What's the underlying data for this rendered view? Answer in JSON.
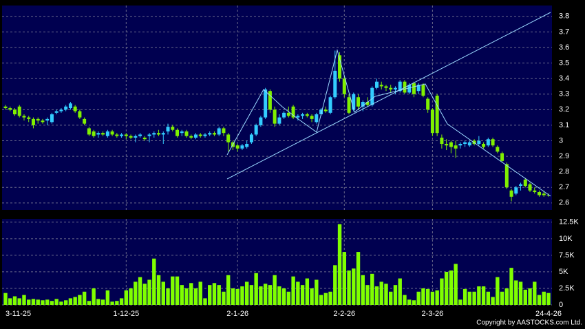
{
  "chart_data": [
    {
      "type": "candlestick",
      "categories": [
        "3-11-25",
        null,
        null,
        null,
        null,
        null,
        null,
        null,
        null,
        null,
        null,
        null,
        null,
        null,
        null,
        null,
        null,
        null,
        null,
        null,
        null,
        null,
        null,
        null,
        null,
        null,
        "1-12-25",
        null,
        null,
        null,
        null,
        null,
        null,
        null,
        null,
        null,
        null,
        null,
        null,
        null,
        null,
        null,
        null,
        null,
        null,
        null,
        null,
        null,
        null,
        null,
        "2-1-26",
        null,
        null,
        null,
        null,
        null,
        null,
        null,
        null,
        null,
        null,
        null,
        null,
        null,
        null,
        null,
        null,
        null,
        null,
        null,
        null,
        null,
        null,
        "2-2-26",
        null,
        null,
        null,
        null,
        null,
        null,
        null,
        null,
        null,
        null,
        null,
        null,
        null,
        null,
        null,
        null,
        null,
        null,
        "2-3-26",
        null,
        null,
        null,
        null,
        null,
        null,
        null,
        null,
        null,
        null,
        null,
        null,
        null,
        null,
        null,
        null,
        null,
        null,
        null,
        null,
        null,
        null,
        null,
        null,
        "24-4-26"
      ],
      "open": [
        3.22,
        3.21,
        3.2,
        3.22,
        3.16,
        3.15,
        3.14,
        3.14,
        3.13,
        3.13,
        3.12,
        3.18,
        3.19,
        3.2,
        3.21,
        3.22,
        3.19,
        3.14,
        3.08,
        3.06,
        3.04,
        3.05,
        3.03,
        3.06,
        3.04,
        3.03,
        3.04,
        3.03,
        3.02,
        3.03,
        3.02,
        3.03,
        3.04,
        3.05,
        3.04,
        3.06,
        3.09,
        3.07,
        3.05,
        3.06,
        3.03,
        3.02,
        3.04,
        3.03,
        3.04,
        3.05,
        3.04,
        3.08,
        3.04,
        2.99,
        2.97,
        2.95,
        2.96,
        2.99,
        3.04,
        3.1,
        3.15,
        3.32,
        3.2,
        3.11,
        3.15,
        3.18,
        3.22,
        3.15,
        3.16,
        3.17,
        3.16,
        3.12,
        3.17,
        3.2,
        3.18,
        3.28,
        3.55,
        3.4,
        3.28,
        3.2,
        3.28,
        3.22,
        3.25,
        3.23,
        3.34,
        3.36,
        3.35,
        3.34,
        3.33,
        3.32,
        3.38,
        3.31,
        3.37,
        3.32,
        3.36,
        3.27,
        3.2,
        3.29,
        3.02,
        2.98,
        2.99,
        2.97,
        2.97,
        2.98,
        2.97,
        3.0,
        2.98,
        2.98,
        2.97,
        3.01,
        2.96,
        2.92,
        2.85,
        2.68,
        2.66,
        2.71,
        2.75,
        2.72,
        2.68,
        2.67,
        2.66,
        2.65
      ],
      "high": [
        3.23,
        3.22,
        3.21,
        3.23,
        3.17,
        3.16,
        3.15,
        3.15,
        3.14,
        3.15,
        3.18,
        3.2,
        3.21,
        3.23,
        3.25,
        3.23,
        3.2,
        3.15,
        3.09,
        3.07,
        3.06,
        3.06,
        3.07,
        3.07,
        3.05,
        3.05,
        3.05,
        3.04,
        3.04,
        3.05,
        3.03,
        3.05,
        3.06,
        3.07,
        3.06,
        3.11,
        3.1,
        3.08,
        3.07,
        3.07,
        3.04,
        3.05,
        3.05,
        3.05,
        3.06,
        3.06,
        3.09,
        3.09,
        3.05,
        3.0,
        2.98,
        2.98,
        3.0,
        3.05,
        3.11,
        3.16,
        3.34,
        3.33,
        3.22,
        3.17,
        3.19,
        3.22,
        3.23,
        3.17,
        3.18,
        3.18,
        3.17,
        3.18,
        3.21,
        3.22,
        3.29,
        3.58,
        3.57,
        3.42,
        3.3,
        3.31,
        3.3,
        3.26,
        3.28,
        3.35,
        3.4,
        3.38,
        3.36,
        3.36,
        3.35,
        3.39,
        3.39,
        3.37,
        3.38,
        3.37,
        3.37,
        3.28,
        3.21,
        3.3,
        3.04,
        3.01,
        3.0,
        3.0,
        2.99,
        3.0,
        3.0,
        3.01,
        3.03,
        2.99,
        3.02,
        3.02,
        2.97,
        2.93,
        2.86,
        2.69,
        2.71,
        2.73,
        2.76,
        2.73,
        2.7,
        2.68,
        2.68,
        2.66
      ],
      "low": [
        3.2,
        3.19,
        3.16,
        3.15,
        3.13,
        3.12,
        3.08,
        3.11,
        3.11,
        3.1,
        3.11,
        3.17,
        3.18,
        3.19,
        3.2,
        3.18,
        3.14,
        3.1,
        3.03,
        3.02,
        3.02,
        3.03,
        3.02,
        3.03,
        3.02,
        3.02,
        3.01,
        3.01,
        2.99,
        3.02,
        3.0,
        2.99,
        3.02,
        3.03,
        2.98,
        3.04,
        3.06,
        3.02,
        3.03,
        3.02,
        3.01,
        3.01,
        3.02,
        3.02,
        3.03,
        3.03,
        3.03,
        3.03,
        2.93,
        2.94,
        2.93,
        2.94,
        2.95,
        2.98,
        3.03,
        3.09,
        3.14,
        3.18,
        3.09,
        3.1,
        3.14,
        3.15,
        3.14,
        3.13,
        3.14,
        3.15,
        3.12,
        3.11,
        3.16,
        3.18,
        3.17,
        3.27,
        3.38,
        3.28,
        3.17,
        3.19,
        3.2,
        3.19,
        3.22,
        3.22,
        3.33,
        3.33,
        3.32,
        3.31,
        3.3,
        3.31,
        3.3,
        3.3,
        3.28,
        3.3,
        3.28,
        3.18,
        3.03,
        3.03,
        2.95,
        2.94,
        2.92,
        2.89,
        2.95,
        2.96,
        2.96,
        2.97,
        2.97,
        2.95,
        2.96,
        2.96,
        2.92,
        2.86,
        2.69,
        2.61,
        2.65,
        2.68,
        2.7,
        2.67,
        2.66,
        2.64,
        2.64,
        2.64
      ],
      "close": [
        3.21,
        3.2,
        3.17,
        3.16,
        3.15,
        3.14,
        3.1,
        3.13,
        3.12,
        3.14,
        3.17,
        3.19,
        3.2,
        3.22,
        3.24,
        3.19,
        3.15,
        3.11,
        3.04,
        3.03,
        3.05,
        3.04,
        3.06,
        3.04,
        3.03,
        3.04,
        3.03,
        3.02,
        3.03,
        3.04,
        3.01,
        3.04,
        3.05,
        3.04,
        3.05,
        3.09,
        3.07,
        3.03,
        3.06,
        3.03,
        3.02,
        3.04,
        3.03,
        3.04,
        3.05,
        3.04,
        3.08,
        3.05,
        2.99,
        2.96,
        2.95,
        2.97,
        2.98,
        3.04,
        3.1,
        3.15,
        3.33,
        3.2,
        3.11,
        3.15,
        3.18,
        3.16,
        3.15,
        3.16,
        3.17,
        3.16,
        3.14,
        3.17,
        3.2,
        3.19,
        3.28,
        3.45,
        3.4,
        3.3,
        3.18,
        3.3,
        3.22,
        3.25,
        3.23,
        3.34,
        3.38,
        3.35,
        3.34,
        3.33,
        3.34,
        3.38,
        3.31,
        3.36,
        3.3,
        3.36,
        3.29,
        3.2,
        3.05,
        3.05,
        2.98,
        2.97,
        2.96,
        2.95,
        2.98,
        2.99,
        2.99,
        2.98,
        3.0,
        2.96,
        3.01,
        2.97,
        2.93,
        2.87,
        2.7,
        2.64,
        2.7,
        2.72,
        2.71,
        2.68,
        2.67,
        2.65,
        2.65,
        2.65
      ],
      "up_color": "#33ccff",
      "down_color": "#80f000",
      "ylim": [
        2.555,
        3.87
      ],
      "yticks": [
        2.6,
        2.7,
        2.8,
        2.9,
        3,
        3.1,
        3.2,
        3.3,
        3.4,
        3.5,
        3.6,
        3.7,
        3.8
      ],
      "grid": true
    },
    {
      "type": "bar",
      "values": [
        1800,
        1000,
        1300,
        1000,
        1500,
        800,
        900,
        800,
        700,
        800,
        600,
        900,
        500,
        700,
        1000,
        1200,
        1500,
        2000,
        600,
        2500,
        900,
        800,
        2200,
        500,
        600,
        1000,
        2200,
        2500,
        3500,
        4200,
        3200,
        3800,
        7000,
        4500,
        3500,
        2500,
        4300,
        4300,
        3000,
        2500,
        3300,
        2500,
        3500,
        1000,
        3000,
        3300,
        3000,
        2000,
        4500,
        2500,
        2400,
        2800,
        3500,
        3000,
        4800,
        2800,
        3200,
        3000,
        4500,
        2800,
        2500,
        2000,
        4300,
        3500,
        3000,
        4000,
        2500,
        3800,
        1500,
        1800,
        2000,
        6000,
        12200,
        8000,
        5200,
        5500,
        8000,
        4500,
        3000,
        4700,
        2800,
        3500,
        3200,
        2000,
        3000,
        4000,
        1500,
        800,
        700,
        2000,
        2500,
        2400,
        2000,
        2200,
        4000,
        5000,
        5200,
        6200,
        800,
        2400,
        2000,
        2000,
        2800,
        2800,
        2000,
        1200,
        4200,
        2000,
        2500,
        5600,
        3700,
        3500,
        2300,
        2500,
        3500,
        1500,
        2000,
        1800
      ],
      "color": "#80ff00",
      "ylim": [
        0,
        13000
      ],
      "yticks": [
        0,
        {
          "value": 2500,
          "label": "2.5K"
        },
        {
          "value": 5000,
          "label": "5K"
        },
        {
          "value": 7500,
          "label": "7.5K"
        },
        {
          "value": 10000,
          "label": "10K"
        },
        {
          "value": 12500,
          "label": "12.5K"
        }
      ],
      "grid": true
    }
  ],
  "footer": "Copyright by AASTOCKS.com Ltd."
}
